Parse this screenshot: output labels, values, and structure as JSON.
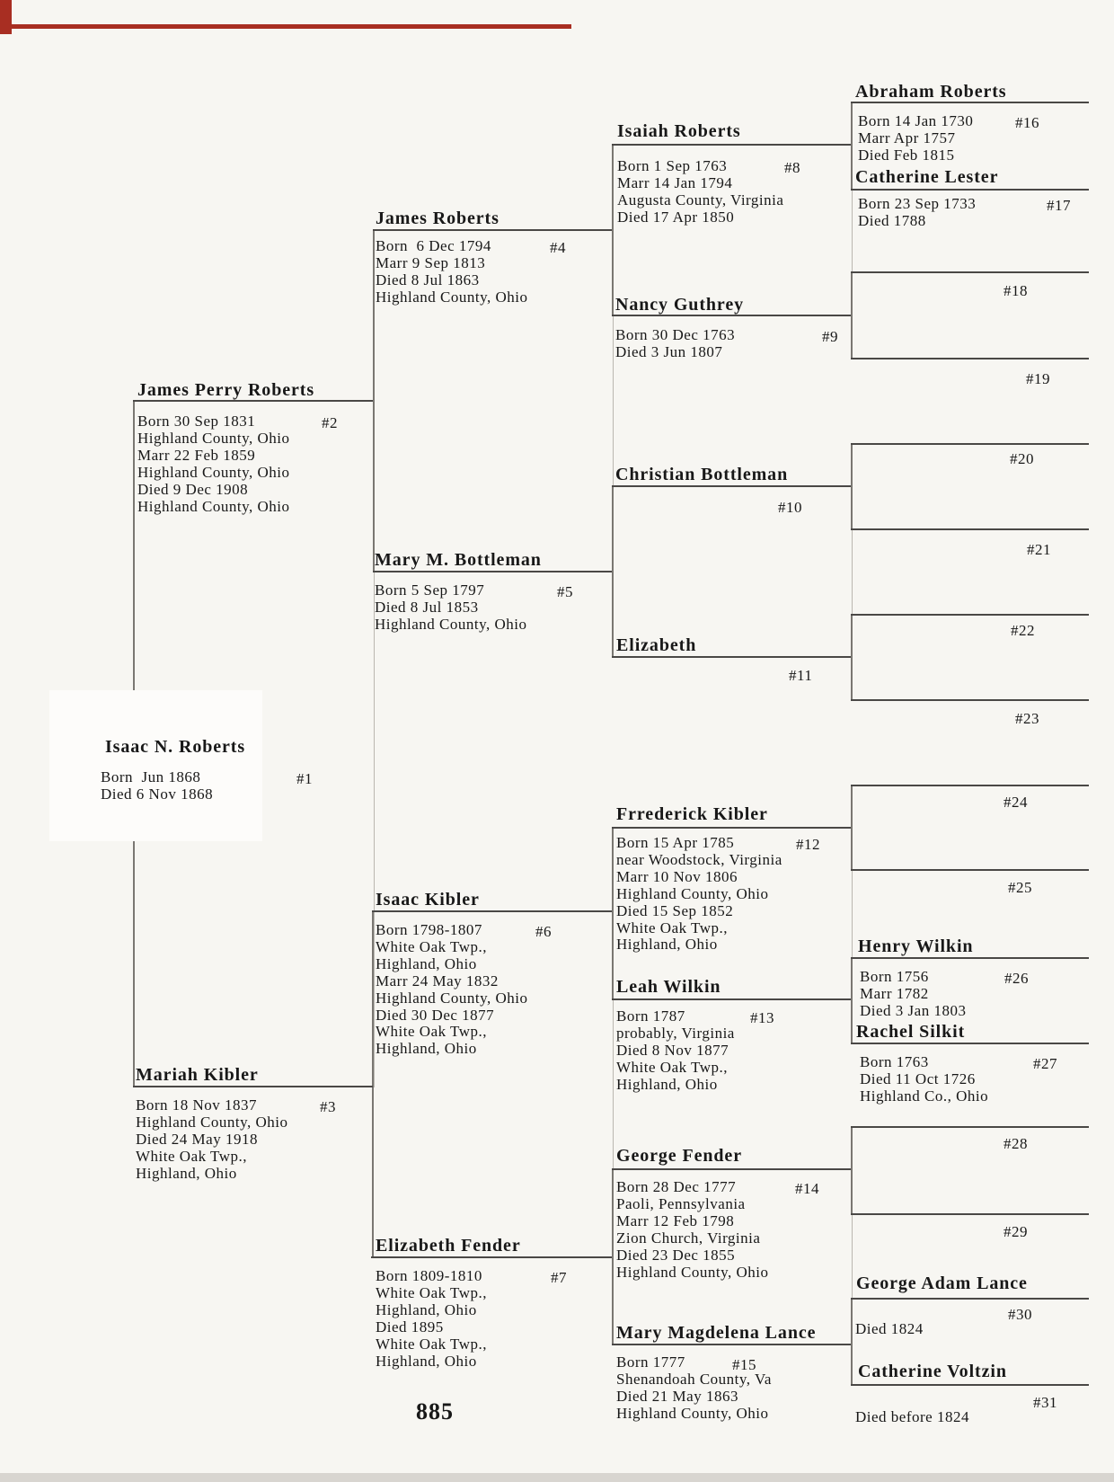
{
  "document": {
    "type": "pedigree-chart-scan",
    "page_number": "885"
  },
  "colors": {
    "paper": "#f7f6f2",
    "ink": "#181818",
    "underline": "#4a4846",
    "bracket_line": "#7a7772",
    "cell_border": "#bab7b0",
    "red_ink": "#a82e22"
  },
  "persons": [
    {
      "key": "p1",
      "name": "Isaac N. Roberts",
      "number": "#1",
      "details": [
        "Born  Jun 1868",
        "Died 6 Nov 1868"
      ]
    },
    {
      "key": "p2",
      "name": "James Perry Roberts",
      "number": "#2",
      "details": [
        "Born 30 Sep 1831",
        "Highland County, Ohio",
        "Marr 22 Feb 1859",
        "Highland County, Ohio",
        "Died 9 Dec 1908",
        "Highland County, Ohio"
      ]
    },
    {
      "key": "p3",
      "name": "Mariah Kibler",
      "number": "#3",
      "details": [
        "Born 18 Nov 1837",
        "Highland County, Ohio",
        "Died 24 May 1918",
        "White Oak Twp.,",
        "Highland, Ohio"
      ]
    },
    {
      "key": "p4",
      "name": "James Roberts",
      "number": "#4",
      "details": [
        "Born  6 Dec 1794",
        "Marr 9 Sep 1813",
        "Died 8 Jul 1863",
        "Highland County, Ohio"
      ]
    },
    {
      "key": "p5",
      "name": "Mary M. Bottleman",
      "number": "#5",
      "details": [
        "Born 5 Sep 1797",
        "Died 8 Jul 1853",
        "Highland County, Ohio"
      ]
    },
    {
      "key": "p6",
      "name": "Isaac Kibler",
      "number": "#6",
      "details": [
        "Born 1798-1807",
        "White Oak Twp.,",
        "Highland, Ohio",
        "Marr 24 May 1832",
        "Highland County, Ohio",
        "Died 30 Dec 1877",
        "White Oak Twp.,",
        "Highland, Ohio"
      ]
    },
    {
      "key": "p7",
      "name": "Elizabeth Fender",
      "number": "#7",
      "details": [
        "Born 1809-1810",
        "White Oak Twp.,",
        "Highland, Ohio",
        "Died 1895",
        "White Oak Twp.,",
        "Highland, Ohio"
      ]
    },
    {
      "key": "p8",
      "name": "Isaiah Roberts",
      "number": "#8",
      "details": [
        "Born 1 Sep 1763",
        "Marr 14 Jan 1794",
        "Augusta County, Virginia",
        "Died 17 Apr 1850"
      ]
    },
    {
      "key": "p9",
      "name": "Nancy Guthrey",
      "number": "#9",
      "details": [
        "Born 30 Dec 1763",
        "Died 3 Jun 1807"
      ]
    },
    {
      "key": "p10",
      "name": "Christian Bottleman",
      "number": "#10",
      "details": []
    },
    {
      "key": "p11",
      "name": "Elizabeth",
      "number": "#11",
      "details": []
    },
    {
      "key": "p12",
      "name": "Frrederick Kibler",
      "number": "#12",
      "details": [
        "Born 15 Apr 1785",
        "near Woodstock, Virginia",
        "Marr 10 Nov 1806",
        "Highland County, Ohio",
        "Died 15 Sep 1852",
        "White Oak Twp.,",
        "Highland, Ohio"
      ]
    },
    {
      "key": "p13",
      "name": "Leah Wilkin",
      "number": "#13",
      "details": [
        "Born 1787",
        "probably, Virginia",
        "Died 8 Nov 1877",
        "White Oak Twp.,",
        "Highland, Ohio"
      ]
    },
    {
      "key": "p14",
      "name": "George Fender",
      "number": "#14",
      "details": [
        "Born 28 Dec 1777",
        "Paoli, Pennsylvania",
        "Marr 12 Feb 1798",
        "Zion Church, Virginia",
        "Died 23 Dec 1855",
        "Highland County, Ohio"
      ]
    },
    {
      "key": "p15",
      "name": "Mary Magdelena Lance",
      "number": "#15",
      "details": [
        "Born 1777",
        "Shenandoah County, Va",
        "Died 21 May 1863",
        "Highland County, Ohio"
      ]
    },
    {
      "key": "p16",
      "name": "Abraham Roberts",
      "number": "#16",
      "details": [
        "Born 14 Jan 1730",
        "Marr Apr 1757",
        "Died Feb 1815"
      ]
    },
    {
      "key": "p17",
      "name": "Catherine Lester",
      "number": "#17",
      "details": [
        "Born 23 Sep 1733",
        "Died 1788"
      ]
    },
    {
      "key": "p18",
      "name": "",
      "number": "#18",
      "details": []
    },
    {
      "key": "p19",
      "name": "",
      "number": "#19",
      "details": []
    },
    {
      "key": "p20",
      "name": "",
      "number": "#20",
      "details": []
    },
    {
      "key": "p21",
      "name": "",
      "number": "#21",
      "details": []
    },
    {
      "key": "p22",
      "name": "",
      "number": "#22",
      "details": []
    },
    {
      "key": "p23",
      "name": "",
      "number": "#23",
      "details": []
    },
    {
      "key": "p24",
      "name": "",
      "number": "#24",
      "details": []
    },
    {
      "key": "p25",
      "name": "",
      "number": "#25",
      "details": []
    },
    {
      "key": "p26",
      "name": "Henry Wilkin",
      "number": "#26",
      "details": [
        "Born 1756",
        "Marr 1782",
        "Died 3 Jan 1803"
      ]
    },
    {
      "key": "p27",
      "name": "Rachel Silkit",
      "number": "#27",
      "details": [
        "Born 1763",
        "Died 11 Oct 1726",
        "Highland Co., Ohio"
      ]
    },
    {
      "key": "p28",
      "name": "",
      "number": "#28",
      "details": []
    },
    {
      "key": "p29",
      "name": "",
      "number": "#29",
      "details": []
    },
    {
      "key": "p30",
      "name": "George Adam Lance",
      "number": "#30",
      "details": [
        "Died 1824"
      ]
    },
    {
      "key": "p31",
      "name": "Catherine Voltzin",
      "number": "#31",
      "details": [
        "Died before 1824"
      ]
    }
  ]
}
